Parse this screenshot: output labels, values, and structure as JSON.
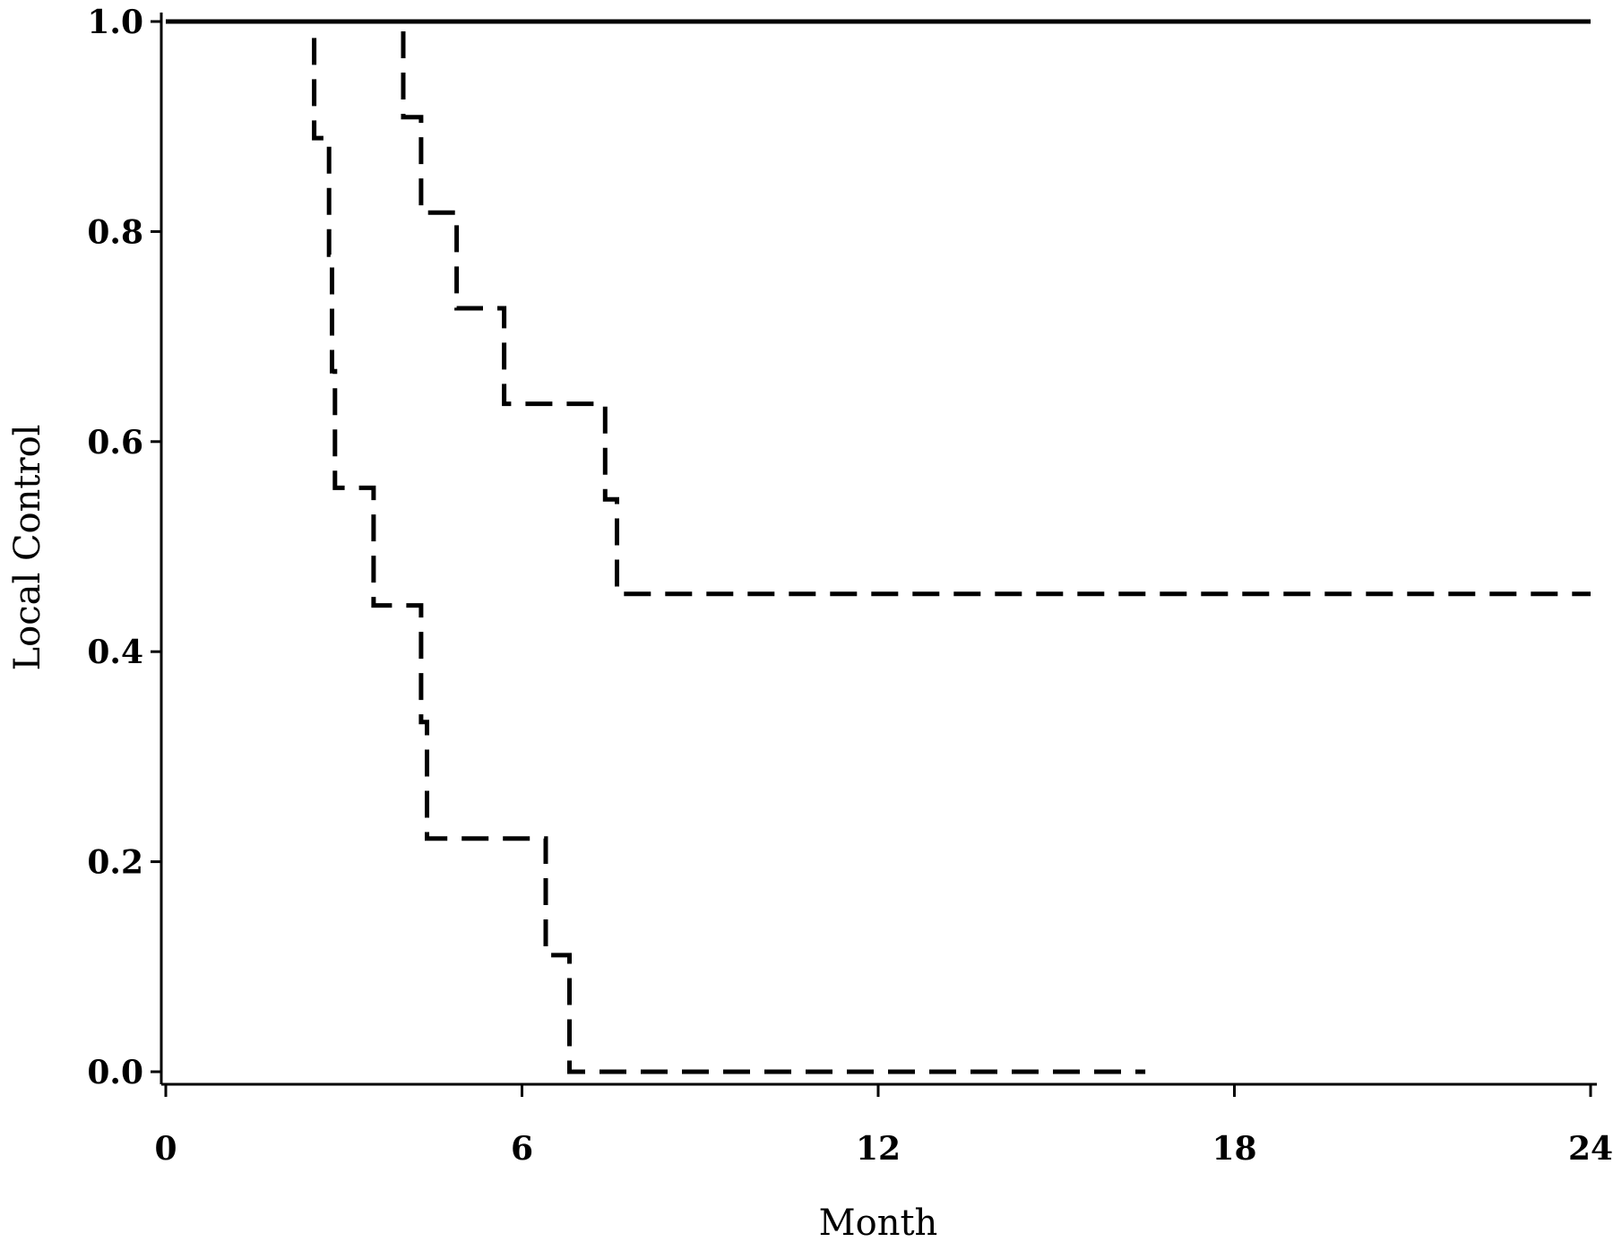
{
  "chart_data": {
    "type": "line",
    "xlabel": "Month",
    "ylabel": "Local Control",
    "xlim": [
      0,
      24
    ],
    "ylim": [
      0,
      1.0
    ],
    "xticks": [
      "0",
      "6",
      "12",
      "18",
      "24"
    ],
    "yticks": [
      "0.0",
      "0.2",
      "0.4",
      "0.6",
      "0.8",
      "1.0"
    ],
    "grid": false,
    "series": [
      {
        "style": "solid",
        "x": [
          0,
          24
        ],
        "y": [
          1.0,
          1.0
        ]
      },
      {
        "style": "dashed",
        "x": [
          0,
          4.0,
          4.0,
          4.3,
          4.3,
          4.9,
          4.9,
          5.7,
          5.7,
          7.4,
          7.4,
          7.6,
          7.6,
          24
        ],
        "y": [
          1.0,
          1.0,
          0.909,
          0.909,
          0.818,
          0.818,
          0.727,
          0.727,
          0.636,
          0.636,
          0.545,
          0.545,
          0.455,
          0.455
        ]
      },
      {
        "style": "dashed",
        "x": [
          0,
          2.5,
          2.5,
          2.75,
          2.75,
          2.8,
          2.8,
          2.85,
          2.85,
          2.9,
          2.9,
          3.5,
          3.5,
          4.3,
          4.3,
          4.4,
          4.4,
          4.6,
          4.6,
          6.4,
          6.4,
          6.8,
          6.8,
          16.5
        ],
        "y": [
          1.0,
          1.0,
          0.889,
          0.889,
          0.778,
          0.778,
          0.667,
          0.667,
          0.556,
          0.556,
          0.556,
          0.556,
          0.444,
          0.444,
          0.333,
          0.333,
          0.222,
          0.222,
          0.222,
          0.222,
          0.111,
          0.111,
          0.0,
          0.0
        ]
      }
    ]
  }
}
